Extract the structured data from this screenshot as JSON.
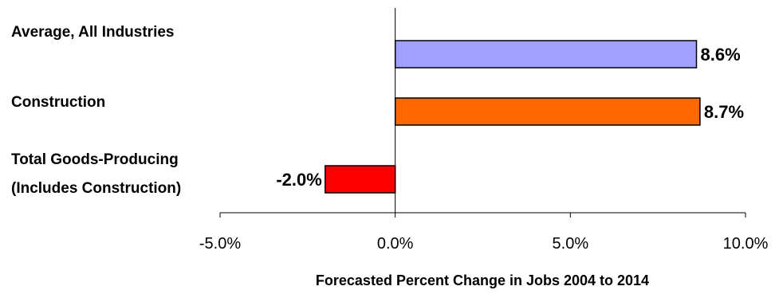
{
  "chart_data": {
    "type": "bar",
    "orientation": "horizontal",
    "categories": [
      [
        "Average, All Industries"
      ],
      [
        "Construction"
      ],
      [
        "Total Goods-Producing",
        "(Includes Construction)"
      ]
    ],
    "values": [
      8.6,
      8.7,
      -2.0
    ],
    "data_labels": [
      "8.6%",
      "8.7%",
      "-2.0%"
    ],
    "colors": [
      "#A0A0FF",
      "#FF6600",
      "#FF0000"
    ],
    "xlim": [
      -5.0,
      10.0
    ],
    "x_ticks": [
      -5.0,
      0.0,
      5.0,
      10.0
    ],
    "x_tick_labels": [
      "-5.0%",
      "0.0%",
      "5.0%",
      "10.0%"
    ],
    "xlabel": "Forecasted Percent Change in Jobs 2004 to 2014",
    "ylabel": "",
    "title": "",
    "grid": false,
    "legend": "none"
  }
}
